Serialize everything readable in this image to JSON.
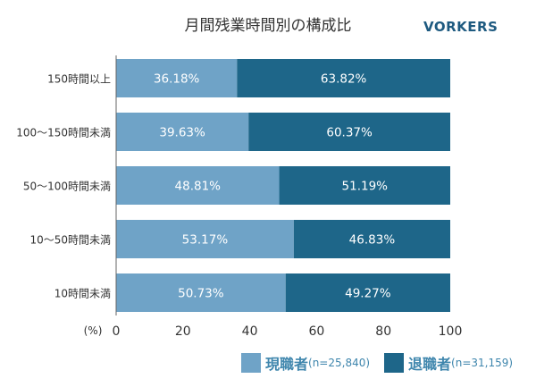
{
  "title": "月間残業時間別の構成比",
  "brand": "VORKERS",
  "chart_data": {
    "type": "bar",
    "orientation": "horizontal",
    "stacked": true,
    "categories": [
      "150時間以上",
      "100〜150時間未満",
      "50〜100時間未満",
      "10〜50時間未満",
      "10時間未満"
    ],
    "series": [
      {
        "name": "現職者",
        "n_label": "(n=25,840)",
        "color": "#6fa3c7",
        "values": [
          36.18,
          39.63,
          48.81,
          53.17,
          50.73
        ],
        "labels": [
          "36.18%",
          "39.63%",
          "48.81%",
          "53.17%",
          "50.73%"
        ]
      },
      {
        "name": "退職者",
        "n_label": "(n=31,159)",
        "color": "#1e6689",
        "values": [
          63.82,
          60.37,
          51.19,
          46.83,
          49.27
        ],
        "labels": [
          "63.82%",
          "60.37%",
          "51.19%",
          "46.83%",
          "49.27%"
        ]
      }
    ],
    "xlim": [
      0,
      100
    ],
    "xticks": [
      "0",
      "20",
      "40",
      "60",
      "80",
      "100"
    ],
    "xunit": "(%)",
    "legend_position": "bottom-right",
    "grid": false
  }
}
